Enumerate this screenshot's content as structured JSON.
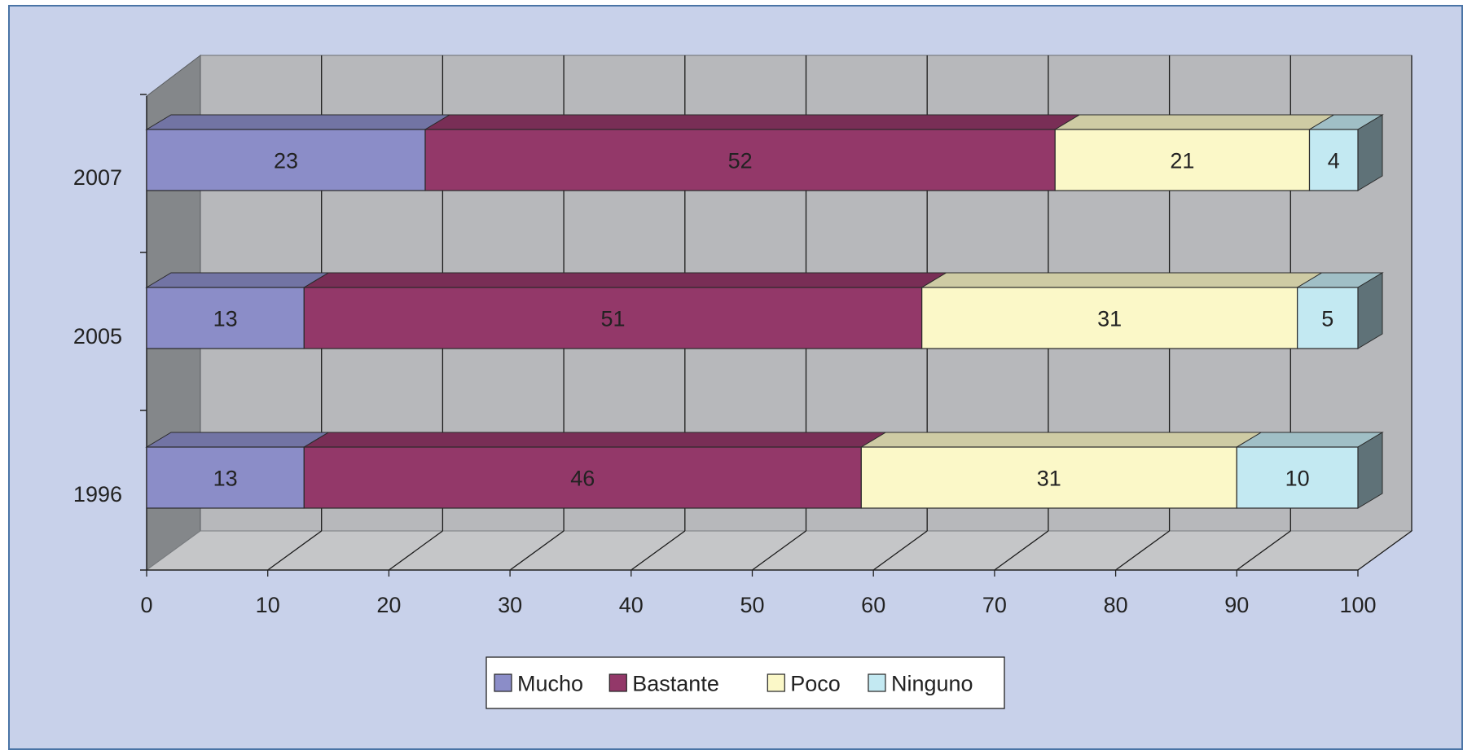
{
  "chart_data": {
    "type": "bar",
    "orientation": "horizontal",
    "stacked": true,
    "three_d": true,
    "categories": [
      "2007",
      "2005",
      "1996"
    ],
    "series": [
      {
        "name": "Mucho",
        "values": [
          23,
          13,
          13
        ],
        "color": "#8b8dc8"
      },
      {
        "name": "Bastante",
        "values": [
          52,
          51,
          46
        ],
        "color": "#933869"
      },
      {
        "name": "Poco",
        "values": [
          21,
          31,
          31
        ],
        "color": "#fbf8c8"
      },
      {
        "name": "Ninguno",
        "values": [
          4,
          5,
          10
        ],
        "color": "#c3e9f2"
      }
    ],
    "xlim": [
      0,
      100
    ],
    "xticks": [
      "0",
      "10",
      "20",
      "30",
      "40",
      "50",
      "60",
      "70",
      "80",
      "90",
      "100"
    ],
    "grid": true,
    "legend": "bottom-center",
    "data_labels": true,
    "title": "",
    "xlabel": "",
    "ylabel": ""
  },
  "colors": {
    "panel_background": "#c8d1ea",
    "panel_border": "#4a74a6",
    "plot_back_wall": "#b7b8bb",
    "plot_side_wall": "#84878a",
    "plot_floor": "#c5c6c8",
    "gridline": "#1a1a1a"
  }
}
